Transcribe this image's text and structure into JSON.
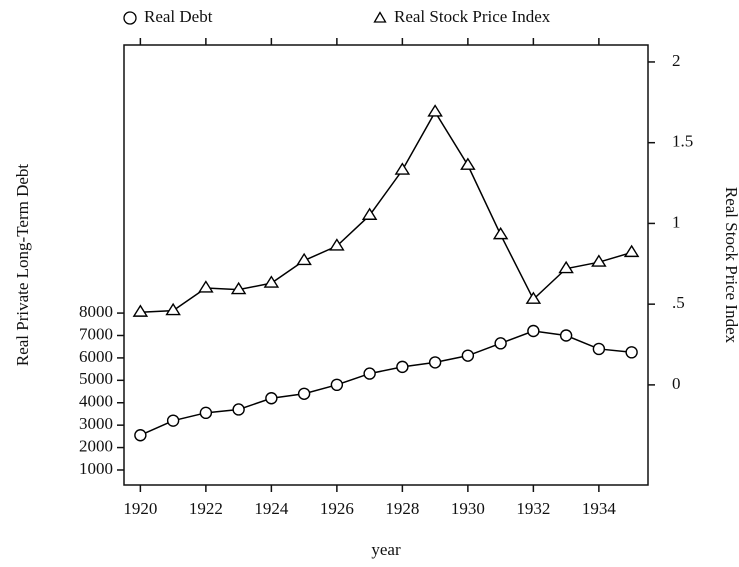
{
  "chart_data": {
    "type": "line",
    "x_label": "year",
    "y_label": "Real Private Long-Term Debt",
    "y2_label": "Real Stock Price Index",
    "x": [
      1920,
      1921,
      1922,
      1923,
      1924,
      1925,
      1926,
      1927,
      1928,
      1929,
      1930,
      1931,
      1932,
      1933,
      1934,
      1935
    ],
    "series": [
      {
        "name": "Real Debt",
        "color": "#000000",
        "marker": "circle",
        "axis": "y",
        "values": [
          2550,
          3200,
          3550,
          3700,
          4200,
          4400,
          4800,
          5300,
          5600,
          5800,
          6100,
          6650,
          7200,
          7000,
          6400,
          6250
        ]
      },
      {
        "name": "Real Stock Price Index",
        "color": "#000000",
        "marker": "triangle",
        "axis": "y2",
        "values": [
          0.45,
          0.46,
          0.6,
          0.59,
          0.63,
          0.77,
          0.86,
          1.05,
          1.33,
          1.69,
          1.36,
          0.93,
          0.53,
          0.72,
          0.76,
          0.82
        ]
      }
    ],
    "xlim": [
      1919.5,
      1935.5
    ],
    "xticks": [
      1920,
      1922,
      1924,
      1926,
      1928,
      1930,
      1932,
      1934
    ],
    "ylim": [
      330,
      19960
    ],
    "yticks": [
      1000,
      2000,
      3000,
      4000,
      5000,
      6000,
      7000,
      8000
    ],
    "y2lim": [
      -0.62,
      2.105
    ],
    "y2ticks": [
      0,
      {
        "value": 0.5,
        "label": ".5"
      },
      1,
      1.5,
      2
    ],
    "grid": false,
    "legend_position": "top"
  }
}
